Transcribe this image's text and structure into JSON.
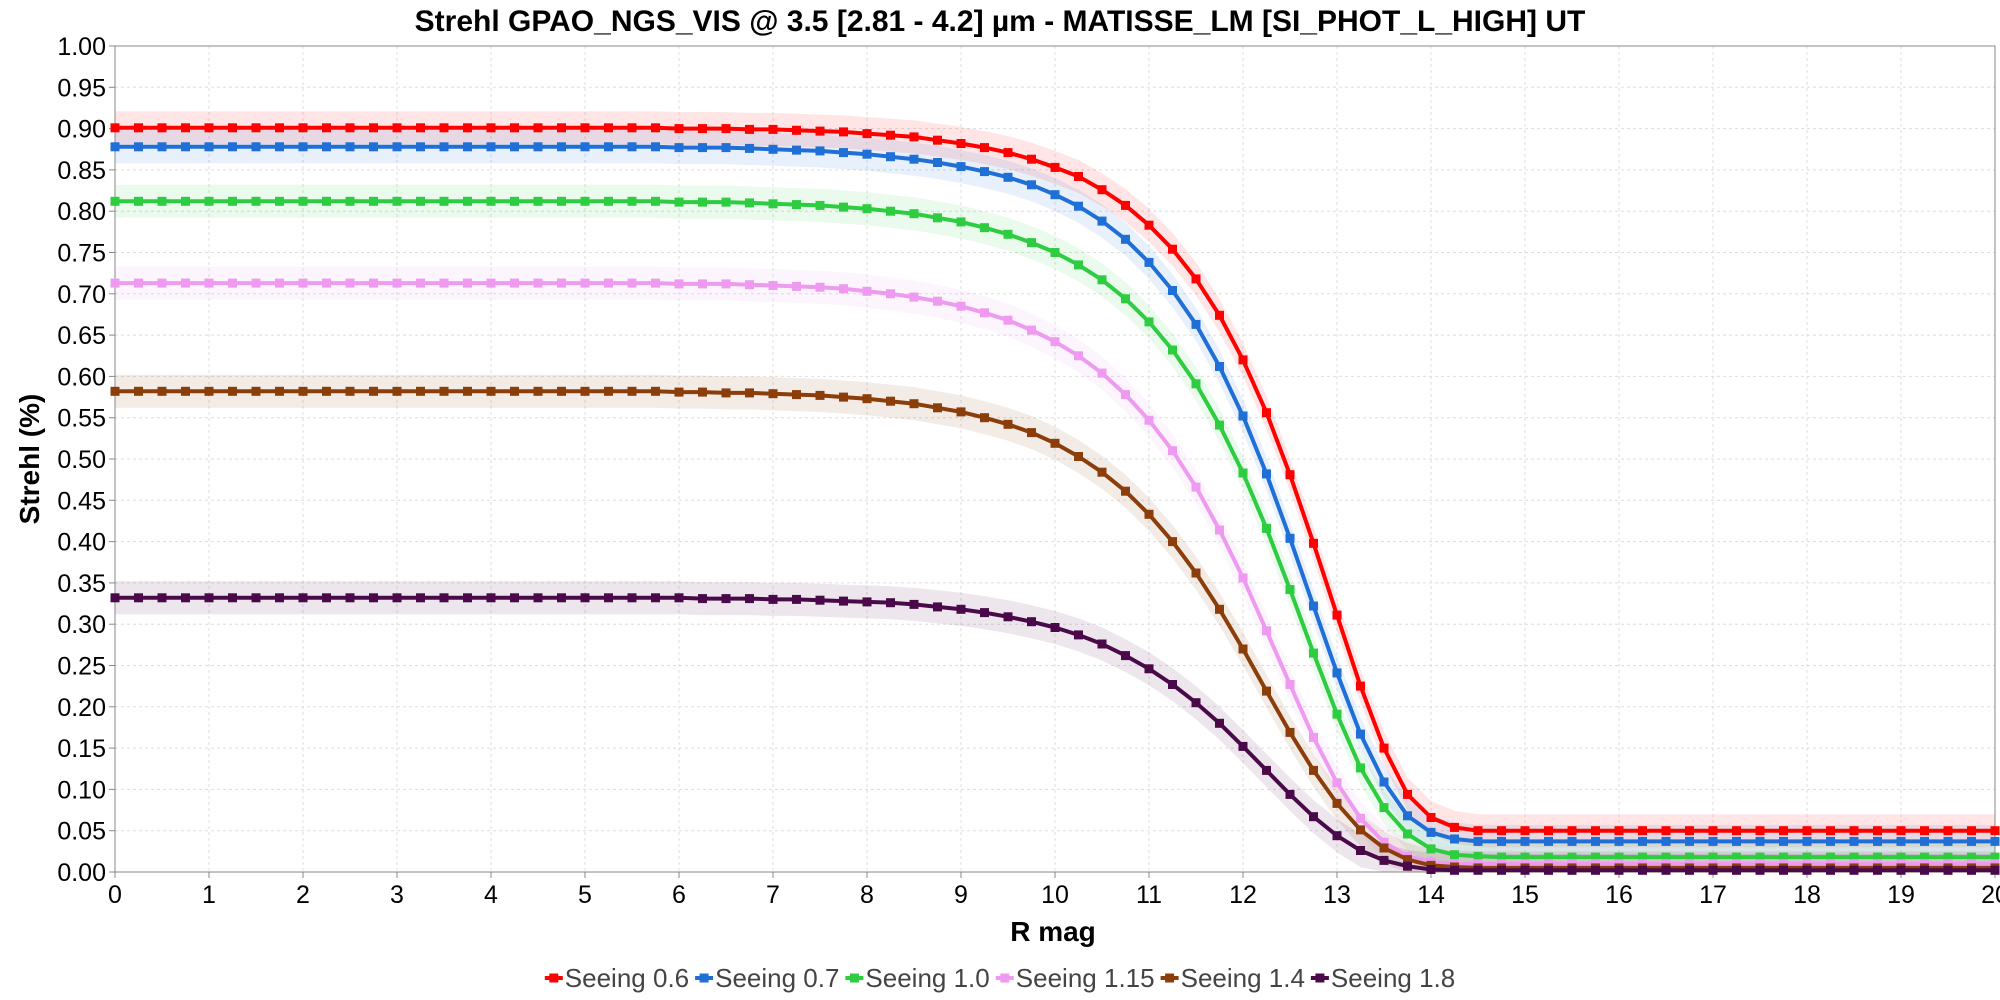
{
  "chart_data": {
    "type": "line",
    "title": "Strehl GPAO_NGS_VIS @ 3.5 [2.81 - 4.2] µm - MATISSE_LM [SI_PHOT_L_HIGH] UT",
    "xlabel": "R mag",
    "ylabel": "Strehl (%)",
    "xlim": [
      0,
      20
    ],
    "ylim": [
      0,
      1
    ],
    "x_ticks": [
      "0",
      "1",
      "2",
      "3",
      "4",
      "5",
      "6",
      "7",
      "8",
      "9",
      "10",
      "11",
      "12",
      "13",
      "14",
      "15",
      "16",
      "17",
      "18",
      "19",
      "20"
    ],
    "y_ticks": [
      "0.00",
      "0.05",
      "0.10",
      "0.15",
      "0.20",
      "0.25",
      "0.30",
      "0.35",
      "0.40",
      "0.45",
      "0.50",
      "0.55",
      "0.60",
      "0.65",
      "0.70",
      "0.75",
      "0.80",
      "0.85",
      "0.90",
      "0.95",
      "1.00"
    ],
    "grid": true,
    "legend_position": "bottom",
    "band_halfwidth": 0.02,
    "x": [
      0,
      0.25,
      0.5,
      0.75,
      1,
      1.25,
      1.5,
      1.75,
      2,
      2.25,
      2.5,
      2.75,
      3,
      3.25,
      3.5,
      3.75,
      4,
      4.25,
      4.5,
      4.75,
      5,
      5.25,
      5.5,
      5.75,
      6,
      6.25,
      6.5,
      6.75,
      7,
      7.25,
      7.5,
      7.75,
      8,
      8.25,
      8.5,
      8.75,
      9,
      9.25,
      9.5,
      9.75,
      10,
      10.25,
      10.5,
      10.75,
      11,
      11.25,
      11.5,
      11.75,
      12,
      12.25,
      12.5,
      12.75,
      13,
      13.25,
      13.5,
      13.75,
      14,
      14.25,
      14.5,
      14.75,
      15,
      15.25,
      15.5,
      15.75,
      16,
      16.25,
      16.5,
      16.75,
      17,
      17.25,
      17.5,
      17.75,
      18,
      18.25,
      18.5,
      18.75,
      19,
      19.25,
      19.5,
      19.75,
      20
    ],
    "series": [
      {
        "name": "Seeing 0.6",
        "color": "#ff0000",
        "values": [
          0.901,
          0.901,
          0.901,
          0.901,
          0.901,
          0.901,
          0.901,
          0.901,
          0.901,
          0.901,
          0.901,
          0.901,
          0.901,
          0.901,
          0.901,
          0.901,
          0.901,
          0.901,
          0.901,
          0.901,
          0.901,
          0.901,
          0.901,
          0.901,
          0.9,
          0.9,
          0.9,
          0.899,
          0.899,
          0.898,
          0.897,
          0.896,
          0.894,
          0.892,
          0.89,
          0.886,
          0.882,
          0.877,
          0.871,
          0.863,
          0.853,
          0.842,
          0.826,
          0.807,
          0.783,
          0.754,
          0.718,
          0.674,
          0.62,
          0.556,
          0.481,
          0.398,
          0.311,
          0.225,
          0.15,
          0.094,
          0.066,
          0.054,
          0.05,
          0.05,
          0.05,
          0.05,
          0.05,
          0.05,
          0.05,
          0.05,
          0.05,
          0.05,
          0.05,
          0.05,
          0.05,
          0.05,
          0.05,
          0.05,
          0.05,
          0.05,
          0.05,
          0.05,
          0.05,
          0.05,
          0.05
        ]
      },
      {
        "name": "Seeing 0.7",
        "color": "#1f6fd6",
        "values": [
          0.878,
          0.878,
          0.878,
          0.878,
          0.878,
          0.878,
          0.878,
          0.878,
          0.878,
          0.878,
          0.878,
          0.878,
          0.878,
          0.878,
          0.878,
          0.878,
          0.878,
          0.878,
          0.878,
          0.878,
          0.878,
          0.878,
          0.878,
          0.878,
          0.877,
          0.877,
          0.877,
          0.876,
          0.875,
          0.874,
          0.873,
          0.871,
          0.869,
          0.866,
          0.863,
          0.859,
          0.854,
          0.848,
          0.841,
          0.832,
          0.82,
          0.806,
          0.788,
          0.766,
          0.738,
          0.704,
          0.663,
          0.612,
          0.552,
          0.482,
          0.404,
          0.322,
          0.241,
          0.167,
          0.109,
          0.068,
          0.048,
          0.04,
          0.037,
          0.037,
          0.037,
          0.037,
          0.037,
          0.037,
          0.037,
          0.037,
          0.037,
          0.037,
          0.037,
          0.037,
          0.037,
          0.037,
          0.037,
          0.037,
          0.037,
          0.037,
          0.037,
          0.037,
          0.037,
          0.037,
          0.037
        ]
      },
      {
        "name": "Seeing 1.0",
        "color": "#2ecc40",
        "values": [
          0.812,
          0.812,
          0.812,
          0.812,
          0.812,
          0.812,
          0.812,
          0.812,
          0.812,
          0.812,
          0.812,
          0.812,
          0.812,
          0.812,
          0.812,
          0.812,
          0.812,
          0.812,
          0.812,
          0.812,
          0.812,
          0.812,
          0.812,
          0.812,
          0.811,
          0.811,
          0.811,
          0.81,
          0.809,
          0.808,
          0.807,
          0.805,
          0.803,
          0.8,
          0.797,
          0.792,
          0.787,
          0.78,
          0.772,
          0.762,
          0.75,
          0.735,
          0.717,
          0.694,
          0.666,
          0.632,
          0.591,
          0.541,
          0.483,
          0.416,
          0.342,
          0.265,
          0.191,
          0.126,
          0.078,
          0.046,
          0.028,
          0.021,
          0.019,
          0.018,
          0.018,
          0.018,
          0.018,
          0.018,
          0.018,
          0.018,
          0.018,
          0.018,
          0.018,
          0.018,
          0.018,
          0.018,
          0.018,
          0.018,
          0.018,
          0.018,
          0.018,
          0.018,
          0.018,
          0.018,
          0.018
        ]
      },
      {
        "name": "Seeing 1.15",
        "color": "#ee9af0",
        "values": [
          0.713,
          0.713,
          0.713,
          0.713,
          0.713,
          0.713,
          0.713,
          0.713,
          0.713,
          0.713,
          0.713,
          0.713,
          0.713,
          0.713,
          0.713,
          0.713,
          0.713,
          0.713,
          0.713,
          0.713,
          0.713,
          0.713,
          0.713,
          0.713,
          0.712,
          0.712,
          0.712,
          0.711,
          0.71,
          0.709,
          0.708,
          0.706,
          0.703,
          0.7,
          0.696,
          0.691,
          0.685,
          0.677,
          0.668,
          0.656,
          0.642,
          0.625,
          0.604,
          0.578,
          0.547,
          0.51,
          0.466,
          0.414,
          0.356,
          0.292,
          0.227,
          0.163,
          0.108,
          0.065,
          0.036,
          0.019,
          0.012,
          0.01,
          0.01,
          0.01,
          0.01,
          0.01,
          0.01,
          0.01,
          0.01,
          0.01,
          0.01,
          0.01,
          0.01,
          0.01,
          0.01,
          0.01,
          0.01,
          0.01,
          0.01,
          0.01,
          0.01,
          0.01,
          0.01,
          0.01,
          0.01
        ]
      },
      {
        "name": "Seeing 1.4",
        "color": "#8b3d0a",
        "values": [
          0.582,
          0.582,
          0.582,
          0.582,
          0.582,
          0.582,
          0.582,
          0.582,
          0.582,
          0.582,
          0.582,
          0.582,
          0.582,
          0.582,
          0.582,
          0.582,
          0.582,
          0.582,
          0.582,
          0.582,
          0.582,
          0.582,
          0.582,
          0.582,
          0.581,
          0.581,
          0.58,
          0.58,
          0.579,
          0.578,
          0.577,
          0.575,
          0.573,
          0.57,
          0.567,
          0.562,
          0.557,
          0.55,
          0.542,
          0.532,
          0.519,
          0.503,
          0.484,
          0.461,
          0.433,
          0.4,
          0.362,
          0.318,
          0.27,
          0.219,
          0.169,
          0.123,
          0.083,
          0.051,
          0.029,
          0.015,
          0.008,
          0.006,
          0.005,
          0.005,
          0.005,
          0.005,
          0.005,
          0.005,
          0.005,
          0.005,
          0.005,
          0.005,
          0.005,
          0.005,
          0.005,
          0.005,
          0.005,
          0.005,
          0.005,
          0.005,
          0.005,
          0.005,
          0.005,
          0.005,
          0.005
        ]
      },
      {
        "name": "Seeing 1.8",
        "color": "#4a0a4a",
        "values": [
          0.332,
          0.332,
          0.332,
          0.332,
          0.332,
          0.332,
          0.332,
          0.332,
          0.332,
          0.332,
          0.332,
          0.332,
          0.332,
          0.332,
          0.332,
          0.332,
          0.332,
          0.332,
          0.332,
          0.332,
          0.332,
          0.332,
          0.332,
          0.332,
          0.332,
          0.331,
          0.331,
          0.331,
          0.33,
          0.33,
          0.329,
          0.328,
          0.327,
          0.326,
          0.324,
          0.321,
          0.318,
          0.314,
          0.309,
          0.303,
          0.296,
          0.287,
          0.276,
          0.262,
          0.246,
          0.227,
          0.205,
          0.18,
          0.152,
          0.123,
          0.094,
          0.067,
          0.044,
          0.026,
          0.014,
          0.007,
          0.003,
          0.002,
          0.002,
          0.002,
          0.002,
          0.002,
          0.002,
          0.002,
          0.002,
          0.002,
          0.002,
          0.002,
          0.002,
          0.002,
          0.002,
          0.002,
          0.002,
          0.002,
          0.002,
          0.002,
          0.002,
          0.002,
          0.002,
          0.002,
          0.002
        ]
      }
    ]
  }
}
